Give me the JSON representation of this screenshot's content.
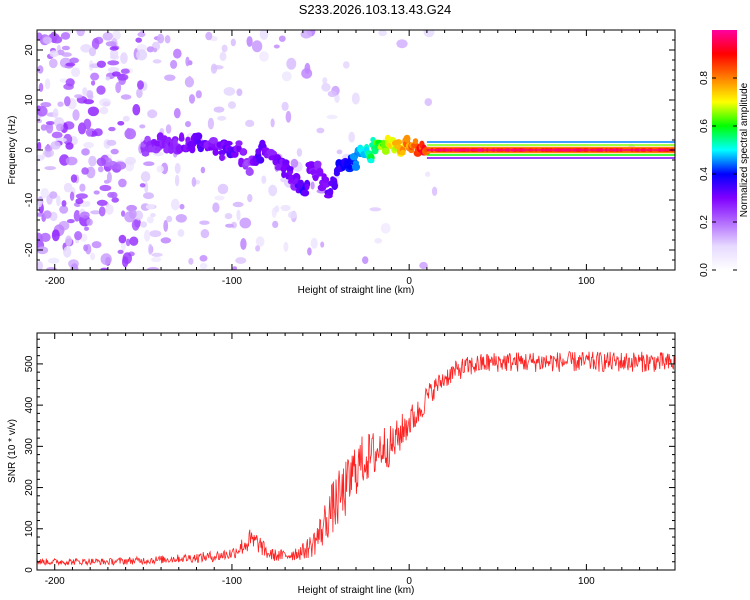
{
  "title": "S233.2026.103.13.43.G24",
  "chart_data": [
    {
      "type": "heatmap",
      "name": "spectrogram",
      "xlabel": "Height of straight line (km)",
      "ylabel": "Frequency (Hz)",
      "xlim": [
        -210,
        150
      ],
      "ylim": [
        -24,
        24
      ],
      "xticks": [
        -200,
        -100,
        0,
        100
      ],
      "xticklabels": [
        "-200",
        "-100",
        "0",
        "100"
      ],
      "yticks": [
        20,
        10,
        0,
        -10,
        -20
      ],
      "yticklabels": [
        "20",
        "10",
        "0",
        "-10",
        "-20"
      ],
      "colorbar": {
        "label": "Normalized spectral amplitude",
        "range": [
          0,
          1
        ],
        "ticks": [
          0.0,
          0.2,
          0.4,
          0.6,
          0.8
        ],
        "ticklabels": [
          "0.0",
          "0.2",
          "0.4",
          "0.6",
          "0.8"
        ],
        "colormap": [
          "#ffffff",
          "#e6d9ff",
          "#b26bff",
          "#8000ff",
          "#0000ff",
          "#00ffff",
          "#00ff00",
          "#ffff00",
          "#ff8000",
          "#ff0000",
          "#ff00a0"
        ]
      },
      "ridge": {
        "x": [
          -150,
          -140,
          -130,
          -120,
          -110,
          -100,
          -95,
          -90,
          -85,
          -80,
          -75,
          -70,
          -65,
          -60,
          -55,
          -50,
          -45,
          -40,
          -35,
          -30,
          -25,
          -20,
          -15,
          -10,
          -5,
          0,
          5,
          10,
          20,
          40,
          60,
          80,
          100,
          120,
          150
        ],
        "freq": [
          1,
          1,
          1,
          1.5,
          1,
          0,
          -1,
          -3,
          -1,
          0,
          -2,
          -4,
          -6,
          -8,
          -4,
          -5,
          -9,
          -5,
          -3,
          -2,
          -1,
          0,
          1.5,
          1,
          0.5,
          0,
          0,
          0,
          0,
          0,
          0,
          0,
          0,
          0,
          0
        ],
        "amplitude": [
          0.25,
          0.3,
          0.3,
          0.35,
          0.3,
          0.35,
          0.3,
          0.25,
          0.35,
          0.3,
          0.3,
          0.35,
          0.3,
          0.4,
          0.3,
          0.3,
          0.35,
          0.4,
          0.4,
          0.5,
          0.55,
          0.6,
          0.7,
          0.75,
          0.8,
          0.85,
          0.9,
          0.95,
          0.98,
          0.98,
          0.98,
          0.98,
          0.98,
          0.98,
          0.98
        ]
      }
    },
    {
      "type": "line",
      "name": "snr",
      "xlabel": "Height of straight line (km)",
      "ylabel": "SNR (10 * v/v)",
      "xlim": [
        -210,
        150
      ],
      "ylim": [
        0,
        575
      ],
      "xticks": [
        -200,
        -100,
        0,
        100
      ],
      "xticklabels": [
        "-200",
        "-100",
        "0",
        "100"
      ],
      "yticks": [
        0,
        100,
        200,
        300,
        400,
        500
      ],
      "yticklabels": [
        "0",
        "100",
        "200",
        "300",
        "400",
        "500"
      ],
      "color": "#ff2020",
      "series": [
        {
          "name": "SNR",
          "x": [
            -210,
            -200,
            -190,
            -180,
            -170,
            -160,
            -150,
            -140,
            -130,
            -120,
            -110,
            -100,
            -95,
            -90,
            -85,
            -80,
            -75,
            -70,
            -65,
            -60,
            -55,
            -50,
            -45,
            -40,
            -35,
            -30,
            -25,
            -20,
            -15,
            -10,
            -5,
            0,
            5,
            10,
            15,
            20,
            25,
            30,
            40,
            50,
            60,
            70,
            80,
            90,
            100,
            110,
            120,
            130,
            140,
            150
          ],
          "values": [
            20,
            20,
            20,
            21,
            20,
            22,
            23,
            25,
            28,
            30,
            33,
            40,
            55,
            70,
            65,
            40,
            35,
            35,
            40,
            45,
            60,
            90,
            140,
            170,
            200,
            250,
            270,
            280,
            300,
            300,
            330,
            360,
            380,
            420,
            445,
            465,
            480,
            490,
            500,
            505,
            505,
            505,
            505,
            505,
            505,
            505,
            505,
            505,
            505,
            500
          ],
          "noise": [
            8,
            8,
            8,
            8,
            8,
            9,
            9,
            10,
            10,
            12,
            13,
            15,
            20,
            30,
            25,
            15,
            15,
            15,
            18,
            20,
            30,
            45,
            60,
            70,
            70,
            70,
            60,
            60,
            55,
            50,
            45,
            40,
            35,
            30,
            25,
            25,
            25,
            25,
            25,
            25,
            25,
            25,
            25,
            25,
            25,
            25,
            25,
            25,
            25,
            25
          ]
        }
      ]
    }
  ]
}
